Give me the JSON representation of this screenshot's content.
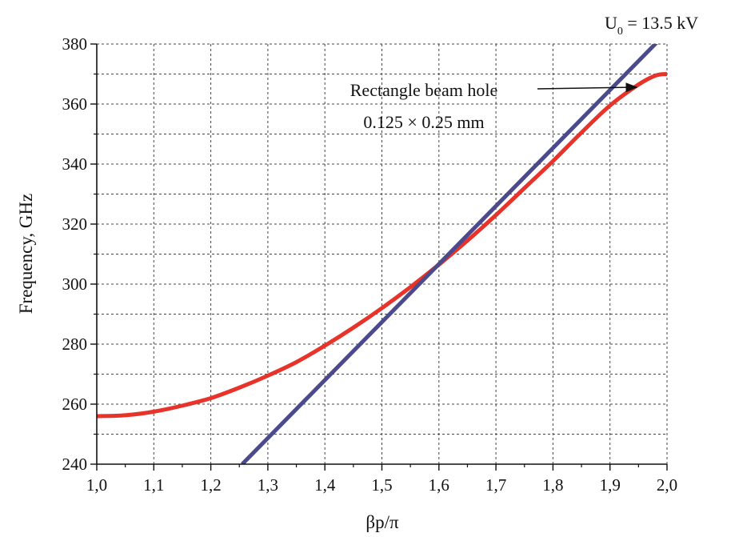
{
  "chart_data": {
    "type": "line",
    "title": "",
    "xlabel": "βp/π",
    "ylabel": "Frequency, GHz",
    "xlim": [
      1.0,
      2.0
    ],
    "ylim": [
      240,
      380
    ],
    "x_tick_labels": [
      "1,0",
      "1,1",
      "1,2",
      "1,3",
      "1,4",
      "1,5",
      "1,6",
      "1,7",
      "1,8",
      "1,9",
      "2,0"
    ],
    "y_tick_labels": [
      "240",
      "260",
      "280",
      "300",
      "320",
      "340",
      "360",
      "380"
    ],
    "grid": true,
    "series": [
      {
        "name": "",
        "color": "#e8332a",
        "x": [
          1.0,
          1.05,
          1.1,
          1.15,
          1.2,
          1.25,
          1.3,
          1.35,
          1.4,
          1.45,
          1.5,
          1.55,
          1.6,
          1.65,
          1.7,
          1.75,
          1.8,
          1.85,
          1.9,
          1.95,
          1.98,
          2.0
        ],
        "y": [
          256,
          256.3,
          257.5,
          259.5,
          262,
          265.5,
          269.5,
          274,
          279.5,
          285.5,
          292,
          299,
          306.5,
          314.5,
          323,
          332,
          341,
          350.5,
          359.5,
          366.5,
          369.5,
          370
        ]
      },
      {
        "name": "",
        "color": "#4a4a8c",
        "x": [
          1.255,
          2.0
        ],
        "y": [
          240,
          384
        ]
      }
    ],
    "annotations": {
      "voltage_label": {
        "base": "U",
        "subscript": "0",
        "rest": " = 13.5 kV"
      },
      "beam_hole_line1": "Rectangle  beam  hole",
      "beam_hole_line2": "0.125 × 0.25 mm"
    }
  }
}
